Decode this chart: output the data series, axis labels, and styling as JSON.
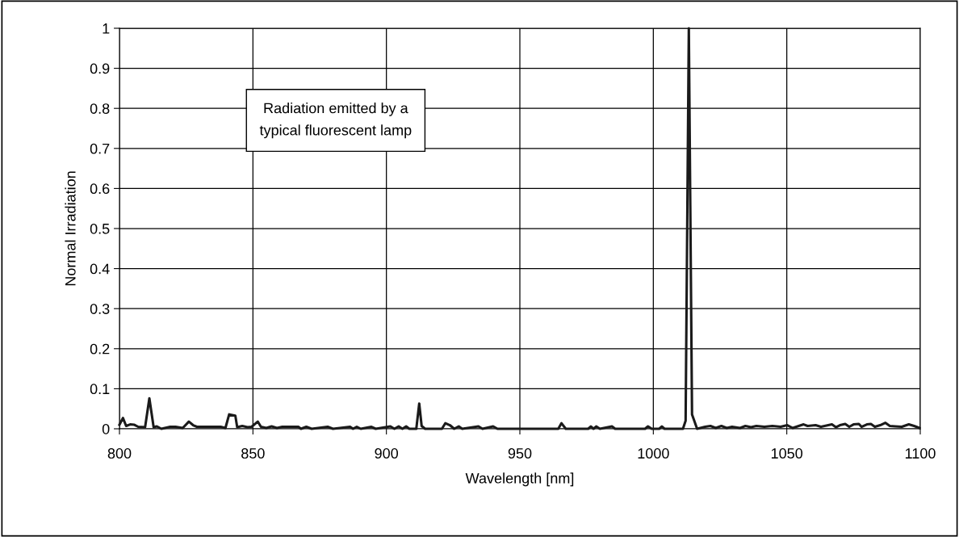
{
  "chart_data": {
    "type": "line",
    "xlabel": "Wavelength [nm]",
    "ylabel": "Normal Irradiation",
    "annotations": [
      "Radiation emitted by a\ntypical fluorescent lamp"
    ],
    "xlim": [
      800,
      1100
    ],
    "xticks": [
      800,
      850,
      900,
      950,
      1000,
      1050,
      1100
    ],
    "ylim": [
      0,
      1
    ],
    "yticks": [
      0,
      0.1,
      0.2,
      0.3,
      0.4,
      0.5,
      0.6,
      0.7,
      0.8,
      0.9,
      1
    ],
    "grid": true,
    "marker": "none",
    "line_style": "solid",
    "series": [
      {
        "color": "#1a1a1a",
        "x": [
          800,
          801.3,
          802.5,
          804,
          805.6,
          807,
          809.6,
          811.2,
          812.8,
          814,
          815.7,
          819,
          821,
          823.7,
          826,
          827.6,
          829,
          831.8,
          837.9,
          839.7,
          841.1,
          843.4,
          844.1,
          846,
          848,
          849.5,
          851.8,
          853,
          855,
          857,
          859,
          861,
          867,
          868,
          870,
          872,
          878,
          880,
          886.4,
          887.5,
          888.9,
          890.4,
          894.4,
          896,
          901.5,
          903,
          904.6,
          906,
          907.4,
          908.6,
          911.2,
          912.3,
          913.2,
          914.5,
          920.8,
          922.1,
          923.8,
          925.4,
          927.1,
          928.4,
          934.5,
          936,
          940,
          941.6,
          964.4,
          965.6,
          967.2,
          975.6,
          976.6,
          977.6,
          978.6,
          980,
          984.5,
          985.7,
          996.9,
          998,
          999.4,
          1002.2,
          1003.2,
          1004.2,
          1011.1,
          1012.1,
          1013.3,
          1014.5,
          1016.4,
          1019.4,
          1021.4,
          1023.4,
          1025.5,
          1027.5,
          1029.5,
          1032.5,
          1034.5,
          1036.6,
          1038.6,
          1041.6,
          1044.6,
          1047.7,
          1050.2,
          1052.2,
          1056.3,
          1057.8,
          1060.8,
          1062.8,
          1066.9,
          1068.4,
          1069.9,
          1071.9,
          1073.4,
          1075,
          1077,
          1078,
          1080,
          1081.5,
          1083,
          1085,
          1086.9,
          1088.6,
          1090.6,
          1093.1,
          1095.7,
          1097.7,
          1099.7
        ],
        "values": [
          0.01,
          0.027,
          0.007,
          0.011,
          0.01,
          0.005,
          0.004,
          0.076,
          0.004,
          0.006,
          0,
          0.005,
          0.005,
          0.002,
          0.018,
          0.009,
          0.005,
          0.005,
          0.005,
          0.002,
          0.036,
          0.033,
          0.004,
          0.007,
          0.004,
          0.005,
          0.018,
          0.005,
          0.002,
          0.006,
          0.002,
          0.005,
          0.005,
          0,
          0.005,
          0,
          0.005,
          0,
          0.005,
          0,
          0.005,
          0,
          0.005,
          0,
          0.006,
          0,
          0.006,
          0,
          0.006,
          0,
          0,
          0.063,
          0.007,
          0,
          0,
          0.014,
          0.009,
          0,
          0.006,
          0,
          0.006,
          0,
          0.006,
          0,
          0,
          0.014,
          0,
          0,
          0.006,
          0,
          0.006,
          0,
          0.006,
          0,
          0,
          0.006,
          0,
          0,
          0.006,
          0,
          0,
          0.02,
          1,
          0.036,
          0,
          0.005,
          0.007,
          0.002,
          0.007,
          0.002,
          0.005,
          0.002,
          0.007,
          0.004,
          0.007,
          0.005,
          0.007,
          0.005,
          0.009,
          0.002,
          0.011,
          0.007,
          0.009,
          0.005,
          0.011,
          0.004,
          0.009,
          0.012,
          0.005,
          0.011,
          0.012,
          0.005,
          0.011,
          0.012,
          0.005,
          0.009,
          0.015,
          0.007,
          0.006,
          0.005,
          0.011,
          0.007,
          0.002
        ]
      }
    ]
  }
}
